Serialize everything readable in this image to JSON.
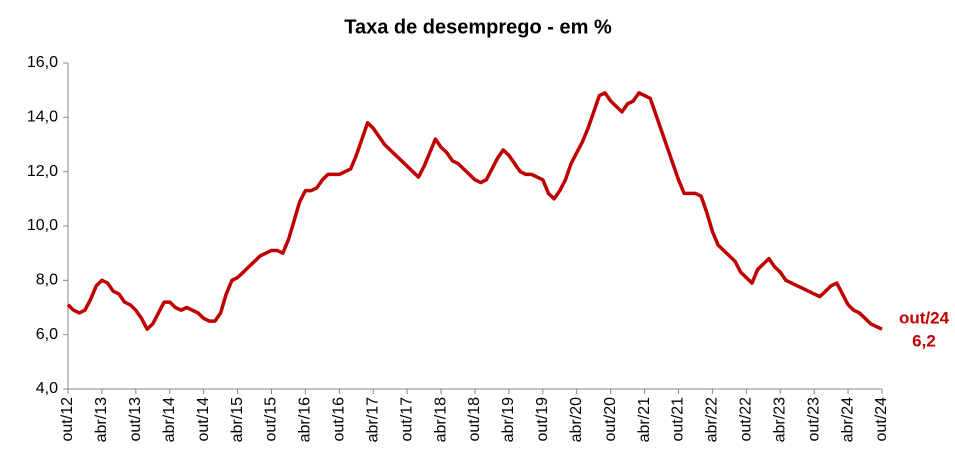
{
  "chart_data": {
    "type": "line",
    "title": "Taxa de desemprego - em %",
    "categories": [
      "out/12",
      null,
      null,
      null,
      null,
      null,
      "abr/13",
      null,
      null,
      null,
      null,
      null,
      "out/13",
      null,
      null,
      null,
      null,
      null,
      "abr/14",
      null,
      null,
      null,
      null,
      null,
      "out/14",
      null,
      null,
      null,
      null,
      null,
      "abr/15",
      null,
      null,
      null,
      null,
      null,
      "out/15",
      null,
      null,
      null,
      null,
      null,
      "abr/16",
      null,
      null,
      null,
      null,
      null,
      "out/16",
      null,
      null,
      null,
      null,
      null,
      "abr/17",
      null,
      null,
      null,
      null,
      null,
      "out/17",
      null,
      null,
      null,
      null,
      null,
      "abr/18",
      null,
      null,
      null,
      null,
      null,
      "out/18",
      null,
      null,
      null,
      null,
      null,
      "abr/19",
      null,
      null,
      null,
      null,
      null,
      "out/19",
      null,
      null,
      null,
      null,
      null,
      "abr/20",
      null,
      null,
      null,
      null,
      null,
      "out/20",
      null,
      null,
      null,
      null,
      null,
      "abr/21",
      null,
      null,
      null,
      null,
      null,
      "out/21",
      null,
      null,
      null,
      null,
      null,
      "abr/22",
      null,
      null,
      null,
      null,
      null,
      "out/22",
      null,
      null,
      null,
      null,
      null,
      "abr/23",
      null,
      null,
      null,
      null,
      null,
      "out/23",
      null,
      null,
      null,
      null,
      null,
      "abr/24",
      null,
      null,
      null,
      null,
      null,
      "out/24"
    ],
    "series": [
      {
        "color": "#c00000",
        "values": [
          7.1,
          6.9,
          6.8,
          6.9,
          7.3,
          7.8,
          8.0,
          7.9,
          7.6,
          7.5,
          7.2,
          7.1,
          6.9,
          6.6,
          6.2,
          6.4,
          6.8,
          7.2,
          7.2,
          7.0,
          6.9,
          7.0,
          6.9,
          6.8,
          6.6,
          6.5,
          6.5,
          6.8,
          7.5,
          8.0,
          8.1,
          8.3,
          8.5,
          8.7,
          8.9,
          9.0,
          9.1,
          9.1,
          9.0,
          9.5,
          10.2,
          10.9,
          11.3,
          11.3,
          11.4,
          11.7,
          11.9,
          11.9,
          11.9,
          12.0,
          12.1,
          12.6,
          13.2,
          13.8,
          13.6,
          13.3,
          13.0,
          12.8,
          12.6,
          12.4,
          12.2,
          12.0,
          11.8,
          12.2,
          12.7,
          13.2,
          12.9,
          12.7,
          12.4,
          12.3,
          12.1,
          11.9,
          11.7,
          11.6,
          11.7,
          12.1,
          12.5,
          12.8,
          12.6,
          12.3,
          12.0,
          11.9,
          11.9,
          11.8,
          11.7,
          11.2,
          11.0,
          11.3,
          11.7,
          12.3,
          12.7,
          13.1,
          13.6,
          14.2,
          14.8,
          14.9,
          14.6,
          14.4,
          14.2,
          14.5,
          14.6,
          14.9,
          14.8,
          14.7,
          14.1,
          13.5,
          12.9,
          12.3,
          11.7,
          11.2,
          11.2,
          11.2,
          11.1,
          10.5,
          9.8,
          9.3,
          9.1,
          8.9,
          8.7,
          8.3,
          8.1,
          7.9,
          8.4,
          8.6,
          8.8,
          8.5,
          8.3,
          8.0,
          7.9,
          7.8,
          7.7,
          7.6,
          7.5,
          7.4,
          7.6,
          7.8,
          7.9,
          7.5,
          7.1,
          6.9,
          6.8,
          6.6,
          6.4,
          6.3,
          6.2
        ]
      }
    ],
    "ylim": [
      4,
      16
    ],
    "yticks": [
      {
        "value": 4,
        "label": "4,0"
      },
      {
        "value": 6,
        "label": "6,0"
      },
      {
        "value": 8,
        "label": "8,0"
      },
      {
        "value": 10,
        "label": "10,0"
      },
      {
        "value": 12,
        "label": "12,0"
      },
      {
        "value": 14,
        "label": "14,0"
      },
      {
        "value": 16,
        "label": "16,0"
      }
    ],
    "grid": false,
    "annotation": {
      "text": "out/24",
      "value_label": "6,2"
    }
  }
}
